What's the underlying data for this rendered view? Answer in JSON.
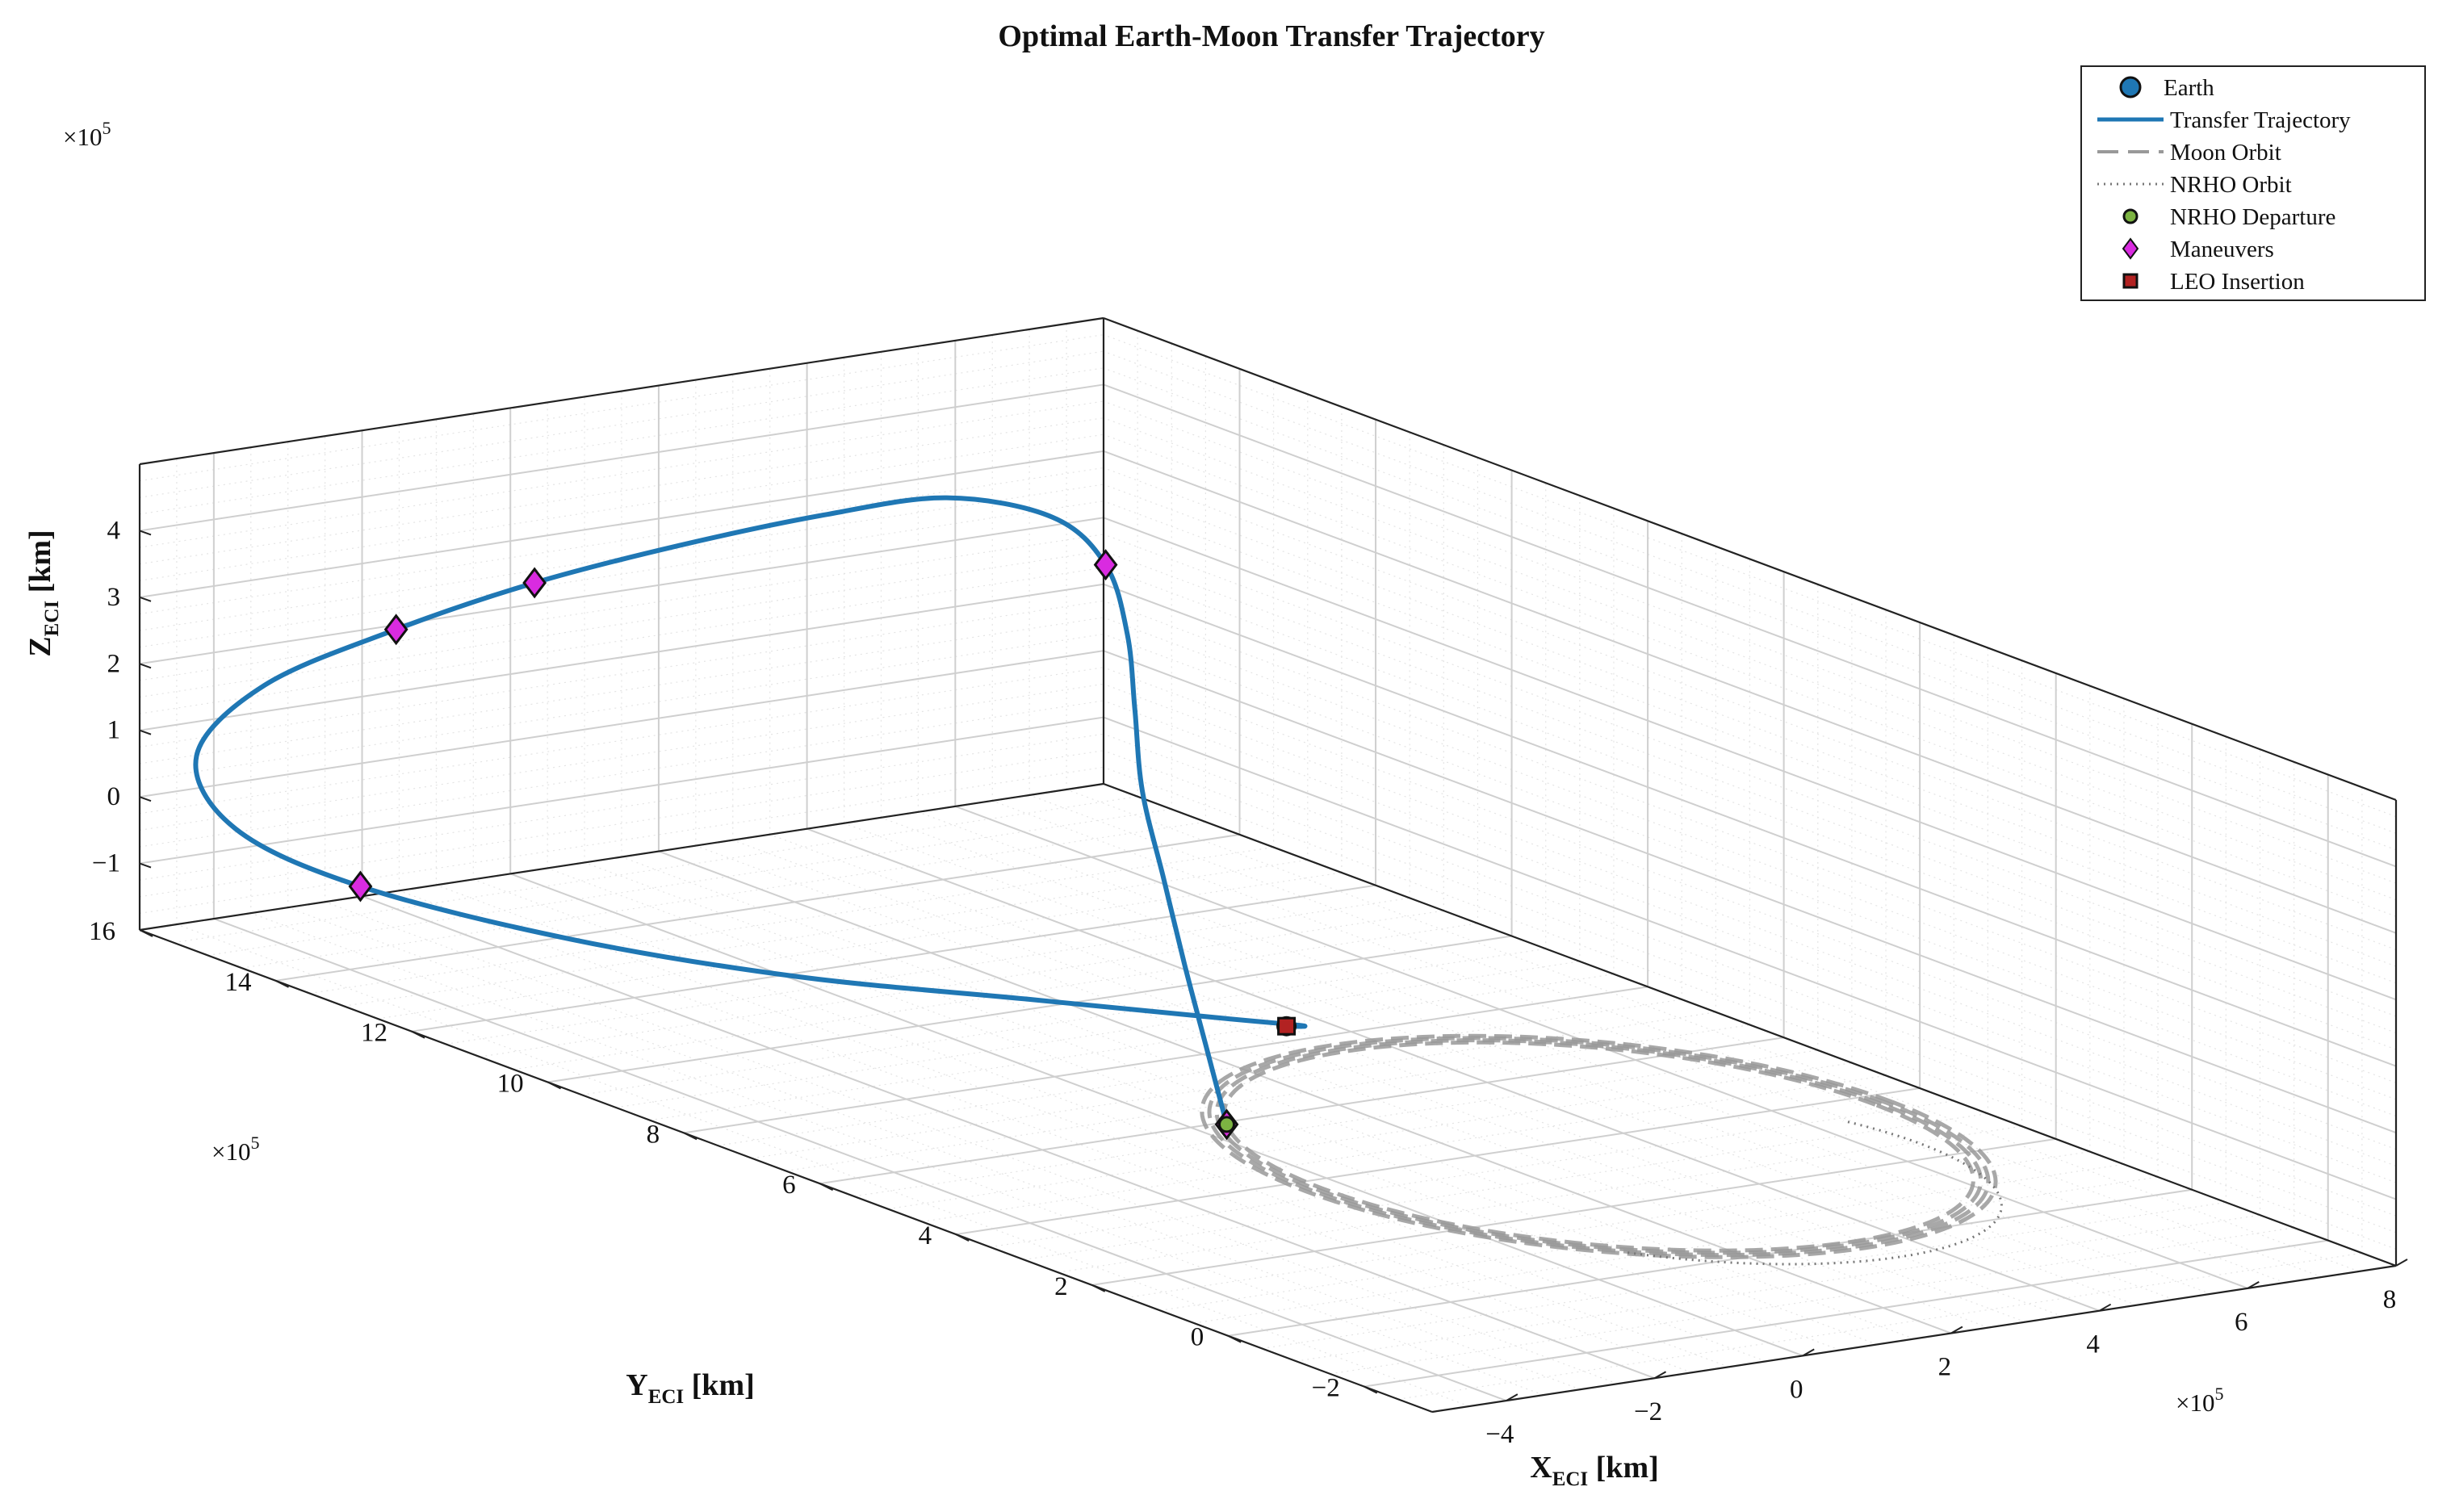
{
  "chart_data": {
    "type": "line",
    "title": "Optimal Earth-Moon Transfer Trajectory",
    "xlabel": "X",
    "xlabel_sub": "ECI",
    "xlabel_unit": " [km]",
    "ylabel": "Y",
    "ylabel_sub": "ECI",
    "ylabel_unit": " [km]",
    "zlabel": "Z",
    "zlabel_sub": "ECI",
    "zlabel_unit": " [km]",
    "xlim": [
      -5,
      8
    ],
    "ylim": [
      -3,
      16
    ],
    "zlim": [
      -2,
      5
    ],
    "x_multiplier": "×10",
    "y_multiplier": "×10",
    "z_multiplier": "×10",
    "multiplier_exp": "5",
    "xticks": [
      "−4",
      "−2",
      "0",
      "2",
      "4",
      "6",
      "8"
    ],
    "yticks": [
      "−2",
      "0",
      "2",
      "4",
      "6",
      "8",
      "10",
      "12",
      "14",
      "16"
    ],
    "zticks": [
      "−1",
      "0",
      "1",
      "2",
      "3",
      "4"
    ],
    "grid": true,
    "legend_position": "top-right",
    "legend": [
      {
        "label": "Earth",
        "marker": "circle"
      },
      {
        "label": "Transfer Trajectory",
        "marker": "solid-line"
      },
      {
        "label": "Moon Orbit",
        "marker": "dashed-line"
      },
      {
        "label": "NRHO Orbit",
        "marker": "dotted-line"
      },
      {
        "label": "NRHO Departure",
        "marker": "small-circle"
      },
      {
        "label": "Maneuvers",
        "marker": "diamond"
      },
      {
        "label": "LEO Insertion",
        "marker": "square"
      }
    ],
    "colors": {
      "earth": "#1f77b4",
      "trajectory": "#1f77b4",
      "moon_orbit": "#999999",
      "nrho": "#777777",
      "nrho_departure": "#7cb342",
      "maneuver": "#d92be0",
      "leo": "#b22222"
    },
    "series": [
      {
        "name": "Transfer Trajectory",
        "points": [
          [
            -3.0,
            2.2,
            0.0
          ],
          [
            -2.0,
            3.6,
            0.5
          ],
          [
            -1.0,
            5.0,
            1.0
          ],
          [
            0.0,
            6.4,
            1.6
          ],
          [
            1.0,
            7.8,
            2.2
          ],
          [
            2.0,
            9.0,
            2.8
          ],
          [
            3.0,
            10.2,
            3.3
          ],
          [
            3.9,
            11.5,
            3.7
          ],
          [
            4.1,
            12.5,
            4.0
          ],
          [
            3.5,
            13.4,
            4.05
          ],
          [
            2.4,
            14.0,
            3.75
          ],
          [
            1.0,
            14.6,
            3.3
          ],
          [
            -0.5,
            15.1,
            2.8
          ],
          [
            -2.0,
            15.5,
            2.2
          ],
          [
            -3.5,
            15.8,
            1.5
          ],
          [
            -4.6,
            15.6,
            0.7
          ],
          [
            -4.9,
            14.7,
            0.0
          ],
          [
            -4.5,
            13.3,
            -0.4
          ],
          [
            -3.5,
            11.3,
            -0.6
          ],
          [
            -2.3,
            9.3,
            -0.6
          ],
          [
            -1.0,
            7.3,
            -0.4
          ],
          [
            0.0,
            5.6,
            -0.2
          ],
          [
            0.4,
            4.8,
            -0.08
          ],
          [
            0.1,
            4.7,
            0.0
          ]
        ]
      },
      {
        "name": "Moon Orbit",
        "center": [
          0.0,
          0.0,
          0.0
        ],
        "radius": 3.844,
        "inclination_deg": 5,
        "revolutions": 4
      },
      {
        "name": "NRHO Orbit",
        "center": [
          0.0,
          0.0,
          0.0
        ],
        "radius": 3.1,
        "note_visible": false
      },
      {
        "name": "Maneuvers",
        "points": [
          [
            -3.0,
            2.2,
            0.0
          ],
          [
            3.9,
            11.5,
            3.7
          ],
          [
            -0.5,
            15.1,
            2.8
          ],
          [
            -2.0,
            15.5,
            2.2
          ],
          [
            -4.5,
            13.3,
            -0.4
          ]
        ]
      },
      {
        "name": "NRHO Departure",
        "points": [
          [
            -3.0,
            2.2,
            0.0
          ]
        ]
      },
      {
        "name": "LEO Insertion",
        "points": [
          [
            0.1,
            4.7,
            0.0
          ]
        ]
      },
      {
        "name": "Earth",
        "points": [
          [
            0.1,
            4.7,
            0.0
          ]
        ]
      }
    ]
  }
}
